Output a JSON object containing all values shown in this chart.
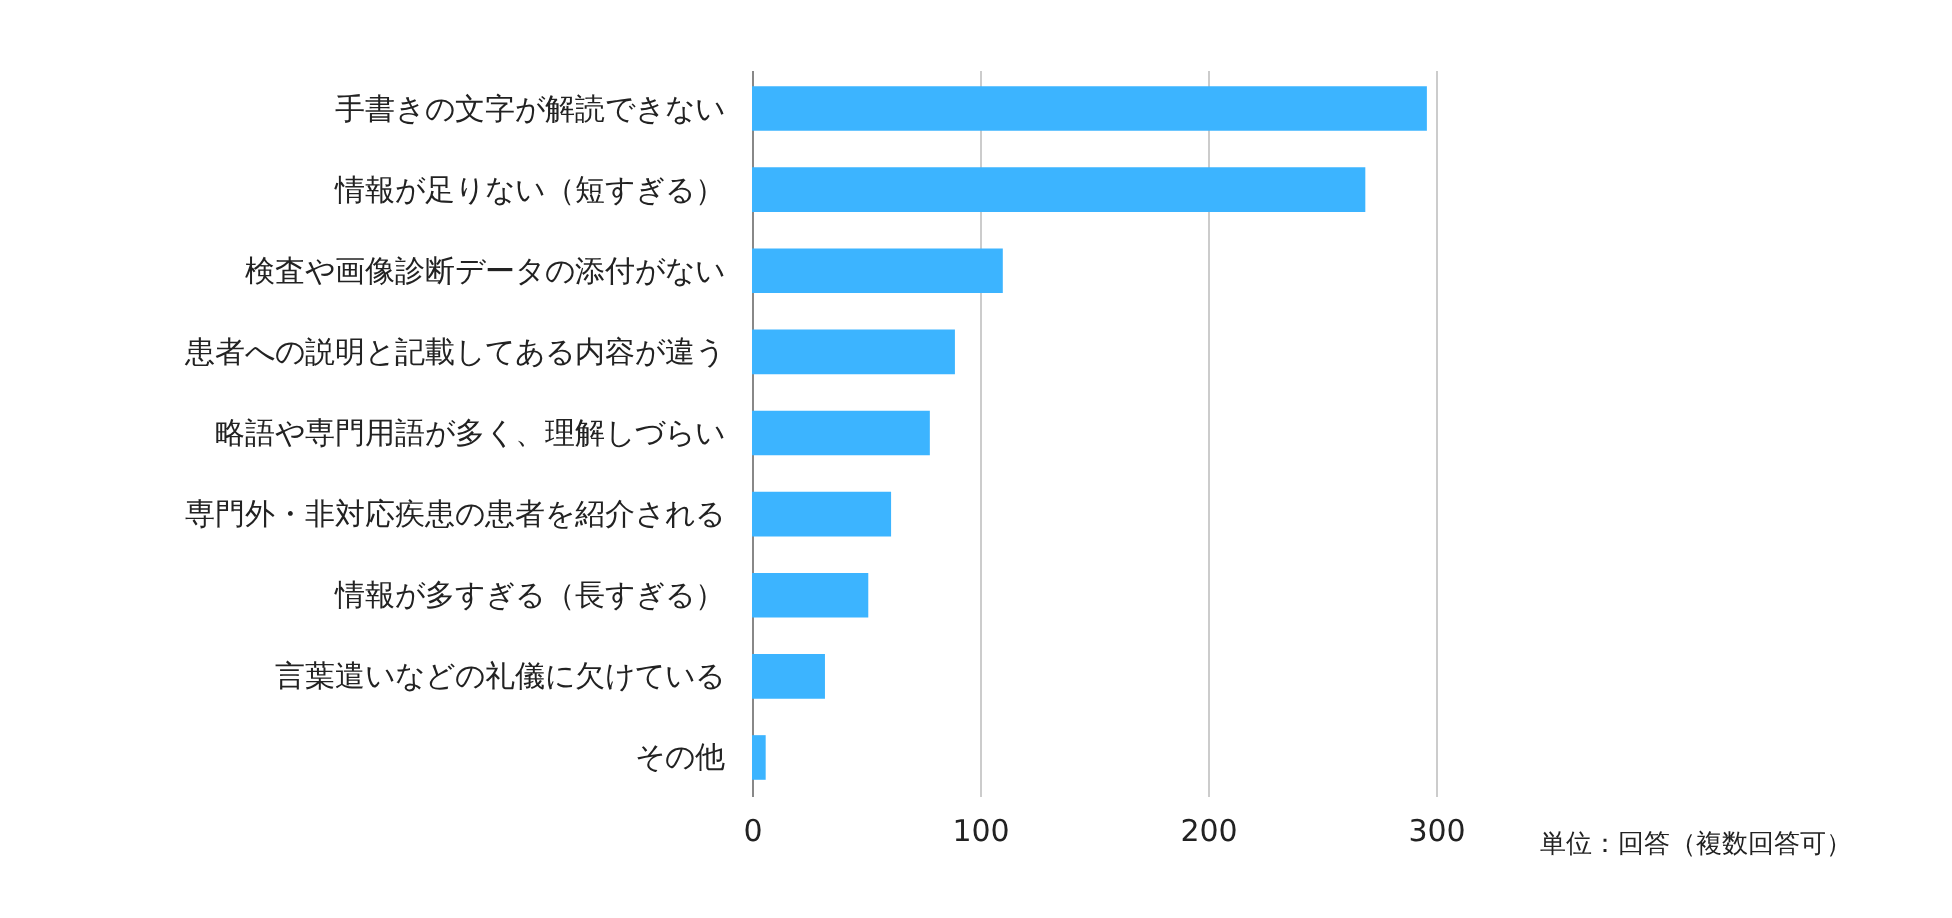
{
  "chart_data": {
    "type": "bar",
    "orientation": "horizontal",
    "categories": [
      "手書きの文字が解読できない",
      "情報が足りない（短すぎる）",
      "検査や画像診断データの添付がない",
      "患者への説明と記載してある内容が違う",
      "略語や専門用語が多く、理解しづらい",
      "専門外・非対応疾患の患者を紹介される",
      "情報が多すぎる（長すぎる）",
      "言葉遣いなどの礼儀に欠けている",
      "その他"
    ],
    "values": [
      296,
      269,
      110,
      89,
      78,
      61,
      51,
      32,
      6
    ],
    "color": "#3cb4ff",
    "xlim": [
      0,
      300
    ],
    "xticks": [
      0,
      100,
      200,
      300
    ],
    "grid": "x",
    "annotations": [
      "単位：回答（複数回答可）"
    ]
  }
}
